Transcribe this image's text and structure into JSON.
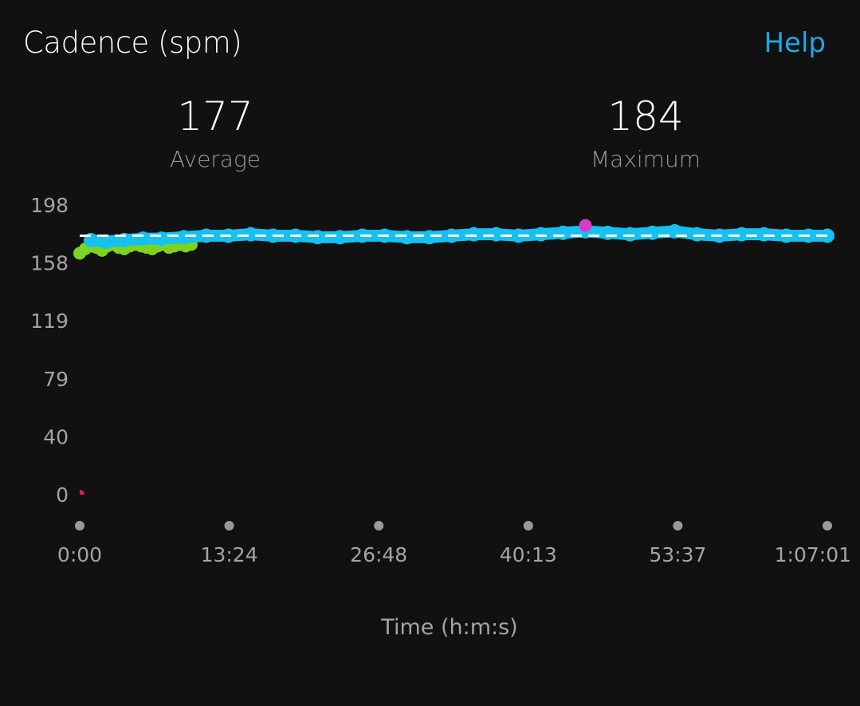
{
  "header": {
    "title": "Cadence (spm)",
    "help_label": "Help"
  },
  "stats": {
    "average_value": "177",
    "average_label": "Average",
    "maximum_value": "184",
    "maximum_label": "Maximum"
  },
  "chart_data": {
    "type": "scatter",
    "ylabel": "",
    "xlabel": "Time (h:m:s)",
    "y_ticks": [
      "198",
      "158",
      "119",
      "79",
      "40",
      "0"
    ],
    "x_ticks": [
      "0:00",
      "13:24",
      "26:48",
      "40:13",
      "53:37",
      "1:07:01"
    ],
    "ylim": [
      0,
      198
    ],
    "x_range_seconds": [
      0,
      4021
    ],
    "average": 177,
    "maximum": {
      "x_seconds": 2720,
      "y": 184
    },
    "colors": {
      "low_cadence": "#7ed321",
      "normal_cadence": "#16c1f0",
      "maximum_marker": "#d63cc8",
      "zero_marker": "#e8194a",
      "average_line": "#ffffff",
      "axis_dots": "#9a9a9a"
    },
    "series": [
      {
        "x_seconds": [
          0,
          30,
          60,
          90,
          120,
          150,
          180,
          210,
          240,
          270,
          300,
          330,
          360,
          390,
          420,
          450,
          480,
          510,
          540,
          570,
          600
        ],
        "y": [
          165,
          168,
          170,
          169,
          167,
          170,
          171,
          169,
          168,
          170,
          171,
          170,
          169,
          168,
          170,
          171,
          169,
          170,
          171,
          170,
          171
        ]
      },
      {
        "x_seconds": [
          60,
          140,
          240,
          340,
          440,
          560,
          680,
          800,
          920,
          1040,
          1160,
          1280,
          1400,
          1520,
          1640,
          1760,
          1880,
          2000,
          2120,
          2240,
          2360,
          2480,
          2600,
          2720,
          2840,
          2960,
          3080,
          3200,
          3320,
          3440,
          3560,
          3680,
          3800,
          3920,
          4021
        ],
        "y": [
          174,
          173,
          174,
          175,
          175,
          176,
          177,
          177,
          178,
          177,
          177,
          176,
          176,
          177,
          177,
          176,
          176,
          177,
          178,
          178,
          177,
          178,
          179,
          180,
          179,
          178,
          179,
          180,
          178,
          177,
          178,
          178,
          177,
          177,
          177
        ]
      },
      {
        "x_seconds": [
          0
        ],
        "y": [
          0
        ]
      }
    ]
  }
}
